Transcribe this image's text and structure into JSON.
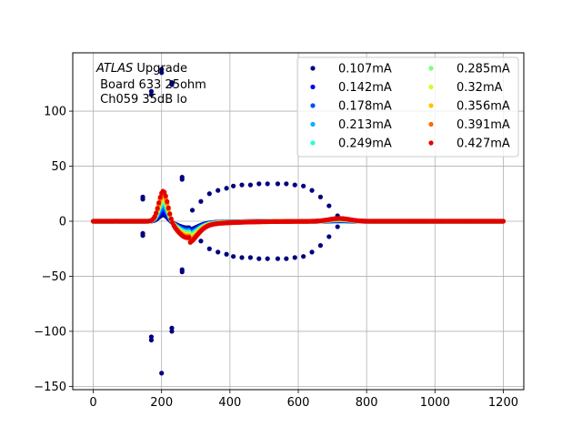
{
  "chart_data": {
    "type": "scatter",
    "title": "",
    "xlabel": "",
    "ylabel": "",
    "xlim": [
      -60,
      1260
    ],
    "ylim": [
      -153,
      153
    ],
    "xticks": [
      0,
      200,
      400,
      600,
      800,
      1000,
      1200
    ],
    "yticks": [
      -150,
      -100,
      -50,
      0,
      50,
      100
    ],
    "grid": true,
    "legend_position": "top-right",
    "legend_columns": 2,
    "annotation": {
      "italic_part": "ATLAS",
      "rest_part": " Upgrade",
      "line2": " Board 633 25ohm",
      "line3": " Ch059 35dB lo"
    },
    "series": [
      {
        "name": "0.107mA",
        "color": "#00007f",
        "peak": 6,
        "under": -6,
        "hump": 0.3,
        "outliers": [
          [
            145,
            20
          ],
          [
            145,
            22
          ],
          [
            145,
            -11
          ],
          [
            145,
            -13
          ],
          [
            170,
            115
          ],
          [
            170,
            118
          ],
          [
            170,
            -105
          ],
          [
            170,
            -108
          ],
          [
            200,
            135
          ],
          [
            200,
            138
          ],
          [
            200,
            -138
          ],
          [
            230,
            124
          ],
          [
            230,
            126
          ],
          [
            230,
            -97
          ],
          [
            230,
            -100
          ],
          [
            260,
            38
          ],
          [
            260,
            40
          ],
          [
            260,
            -44
          ],
          [
            260,
            -46
          ],
          [
            290,
            10
          ],
          [
            290,
            -10
          ],
          [
            315,
            18
          ],
          [
            315,
            -18
          ],
          [
            340,
            25
          ],
          [
            340,
            -25
          ],
          [
            365,
            28
          ],
          [
            365,
            -28
          ],
          [
            390,
            30
          ],
          [
            390,
            -30
          ],
          [
            410,
            32
          ],
          [
            410,
            -32
          ],
          [
            435,
            33
          ],
          [
            435,
            -33
          ],
          [
            460,
            33
          ],
          [
            460,
            -33
          ],
          [
            485,
            34
          ],
          [
            485,
            -34
          ],
          [
            510,
            34
          ],
          [
            510,
            -34
          ],
          [
            540,
            34
          ],
          [
            540,
            -34
          ],
          [
            565,
            34
          ],
          [
            565,
            -34
          ],
          [
            590,
            33
          ],
          [
            590,
            -33
          ],
          [
            615,
            32
          ],
          [
            615,
            -32
          ],
          [
            640,
            28
          ],
          [
            640,
            -28
          ],
          [
            665,
            22
          ],
          [
            665,
            -22
          ],
          [
            690,
            14
          ],
          [
            690,
            -14
          ],
          [
            715,
            5
          ],
          [
            715,
            -5
          ]
        ]
      },
      {
        "name": "0.142mA",
        "color": "#0000f1",
        "peak": 9,
        "under": -7,
        "hump": 0.6,
        "outliers": []
      },
      {
        "name": "0.178mA",
        "color": "#004dff",
        "peak": 12,
        "under": -8,
        "hump": 0.9,
        "outliers": []
      },
      {
        "name": "0.213mA",
        "color": "#00b1ff",
        "peak": 15,
        "under": -9,
        "hump": 1.2,
        "outliers": []
      },
      {
        "name": "0.249mA",
        "color": "#29ffce",
        "peak": 18,
        "under": -10,
        "hump": 1.5,
        "outliers": []
      },
      {
        "name": "0.285mA",
        "color": "#7dff7a",
        "peak": 20,
        "under": -11,
        "hump": 1.8,
        "outliers": []
      },
      {
        "name": "0.32mA",
        "color": "#ceff29",
        "peak": 22,
        "under": -12,
        "hump": 2.0,
        "outliers": []
      },
      {
        "name": "0.356mA",
        "color": "#ffc400",
        "peak": 24,
        "under": -13,
        "hump": 2.2,
        "outliers": []
      },
      {
        "name": "0.391mA",
        "color": "#ff6800",
        "peak": 26,
        "under": -14,
        "hump": 2.4,
        "outliers": []
      },
      {
        "name": "0.427mA",
        "color": "#e40000",
        "peak": 28,
        "under": -15,
        "hump": 2.6,
        "outliers": []
      }
    ]
  }
}
